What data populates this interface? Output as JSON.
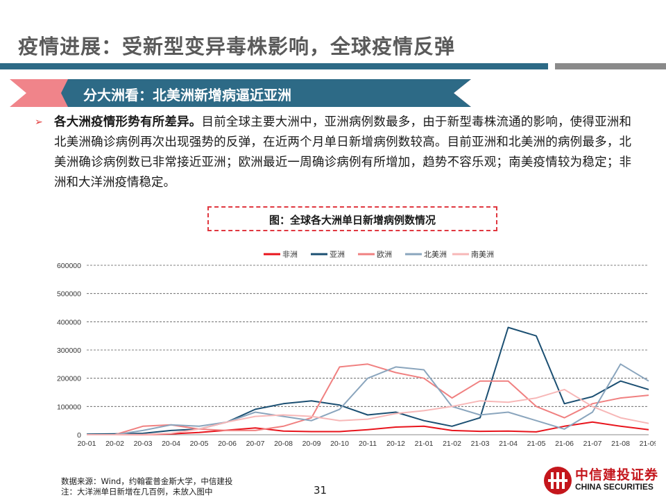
{
  "header": {
    "title": "疫情进展：受新型变异毒株影响，全球疫情反弹"
  },
  "section": {
    "heading": "分大洲看：北美洲新增病逼近亚洲"
  },
  "body": {
    "lead": "各大洲疫情形势有所差异。",
    "text": "目前全球主要大洲中，亚洲病例数最多，由于新型毒株流通的影响，使得亚洲和北美洲确诊病例再次出现强势的反弹，在近两个月单日新增病例数较高。目前亚洲和北美洲的病例最多，北美洲确诊病例数已非常接近亚洲；欧洲最近一周确诊病例有所增加，趋势不容乐观；南美疫情较为稳定；非洲和大洋洲疫情稳定。"
  },
  "figure": {
    "title": "图：全球各大洲单日新增病例数情况"
  },
  "chart_data": {
    "type": "line",
    "x": [
      "20-01",
      "20-02",
      "20-03",
      "20-04",
      "20-05",
      "20-06",
      "20-07",
      "20-08",
      "20-09",
      "20-10",
      "20-11",
      "20-12",
      "21-01",
      "21-02",
      "21-03",
      "21-04",
      "21-05",
      "21-06",
      "21-07",
      "21-08",
      "21-09"
    ],
    "ylim": [
      0,
      600000
    ],
    "yticks": [
      "0",
      "100000",
      "200000",
      "300000",
      "400000",
      "500000",
      "600000"
    ],
    "grid": true,
    "legend_position": "top",
    "series": [
      {
        "name": "非洲",
        "color": "#e8141c",
        "values": [
          0,
          0,
          200,
          3000,
          8000,
          16000,
          24000,
          13000,
          11000,
          11000,
          18000,
          27000,
          30000,
          15000,
          12000,
          13000,
          10000,
          30000,
          45000,
          30000,
          18000
        ]
      },
      {
        "name": "亚洲",
        "color": "#1b4f72",
        "values": [
          2000,
          3000,
          5000,
          15000,
          20000,
          45000,
          90000,
          110000,
          120000,
          105000,
          70000,
          80000,
          50000,
          30000,
          60000,
          380000,
          350000,
          110000,
          135000,
          190000,
          160000
        ]
      },
      {
        "name": "欧洲",
        "color": "#f08080",
        "values": [
          0,
          0,
          30000,
          35000,
          20000,
          15000,
          15000,
          30000,
          60000,
          240000,
          250000,
          220000,
          200000,
          130000,
          190000,
          190000,
          100000,
          60000,
          110000,
          130000,
          140000
        ]
      },
      {
        "name": "北美洲",
        "color": "#8aa5bd",
        "values": [
          0,
          0,
          15000,
          35000,
          30000,
          45000,
          80000,
          65000,
          50000,
          90000,
          200000,
          240000,
          230000,
          100000,
          70000,
          80000,
          50000,
          20000,
          80000,
          250000,
          190000
        ]
      },
      {
        "name": "南美洲",
        "color": "#f7b7b7",
        "values": [
          0,
          0,
          1000,
          5000,
          20000,
          45000,
          65000,
          70000,
          65000,
          50000,
          55000,
          75000,
          85000,
          100000,
          120000,
          115000,
          130000,
          160000,
          100000,
          60000,
          40000
        ]
      }
    ]
  },
  "footer": {
    "source": "数据来源：Wind，约翰霍普金斯大学，中信建投",
    "note": "注：大洋洲单日新增在几百例，未放入图中",
    "page": "31"
  },
  "logo": {
    "cn": "中信建投证券",
    "en": "CHINA SECURITIES"
  },
  "colors": {
    "accent_red": "#e0373f",
    "primary_blue": "#2d6a86",
    "banner_red": "#f0848a"
  }
}
